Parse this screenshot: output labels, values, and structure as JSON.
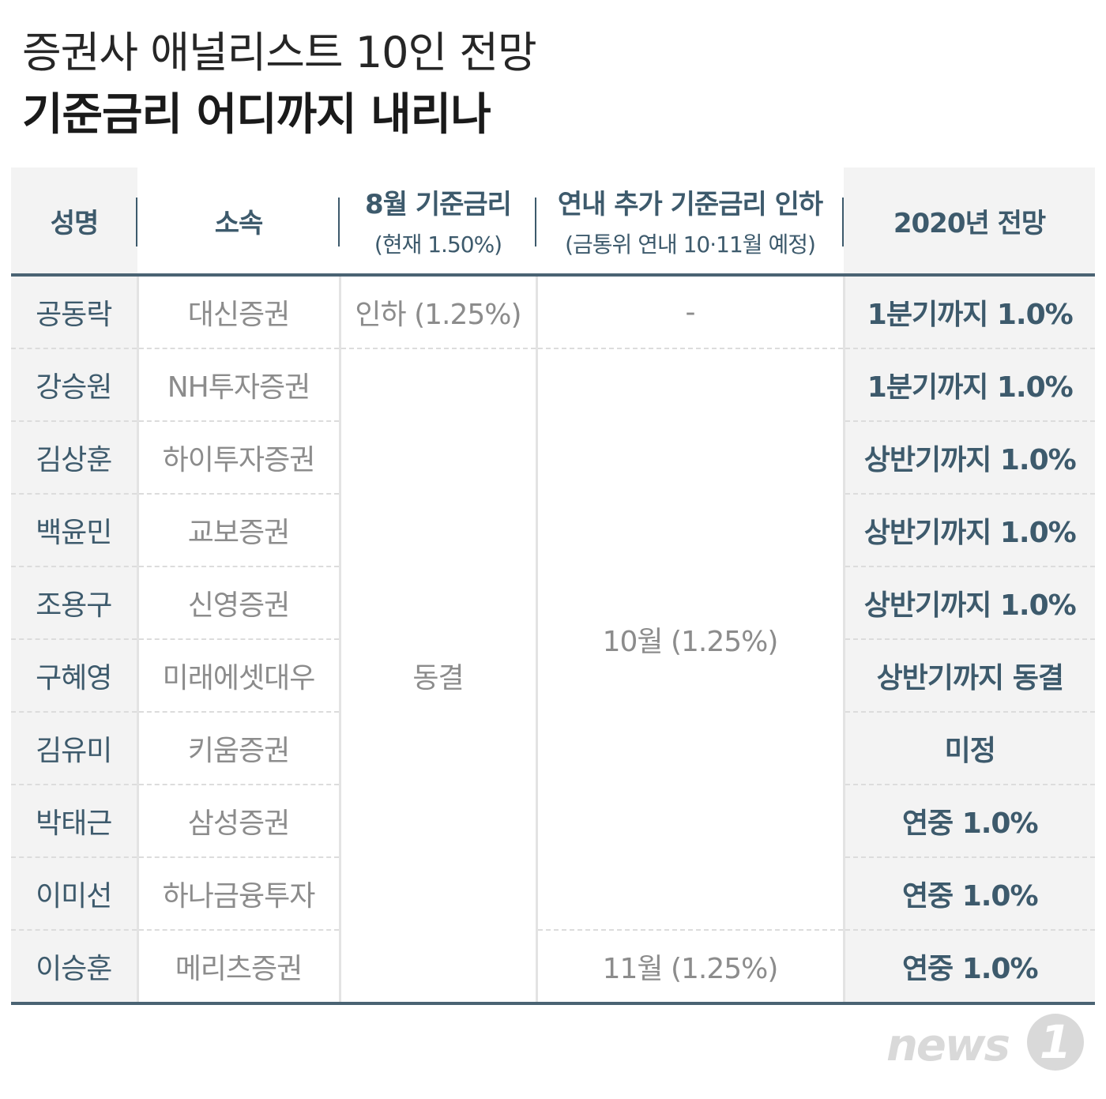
{
  "title": {
    "line1": "증권사 애널리스트 10인 전망",
    "line2": "기준금리 어디까지 내리나"
  },
  "table": {
    "headers": {
      "name": "성명",
      "affiliation": "소속",
      "august_main": "8월 기준금리",
      "august_sub": "(현재 1.50%)",
      "cut_main": "연내 추가 기준금리 인하",
      "cut_sub": "(금통위 연내 10·11월 예정)",
      "outlook": "2020년 전망"
    },
    "rows": [
      {
        "name": "공동락",
        "affiliation": "대신증권",
        "august": "인하 (1.25%)",
        "cut": "-",
        "outlook": "1분기까지 1.0%"
      },
      {
        "name": "강승원",
        "affiliation": "NH투자증권",
        "outlook": "1분기까지 1.0%"
      },
      {
        "name": "김상훈",
        "affiliation": "하이투자증권",
        "outlook": "상반기까지 1.0%"
      },
      {
        "name": "백윤민",
        "affiliation": "교보증권",
        "outlook": "상반기까지 1.0%"
      },
      {
        "name": "조용구",
        "affiliation": "신영증권",
        "outlook": "상반기까지 1.0%"
      },
      {
        "name": "구혜영",
        "affiliation": "미래에셋대우",
        "outlook": "상반기까지 동결"
      },
      {
        "name": "김유미",
        "affiliation": "키움증권",
        "outlook": "미정"
      },
      {
        "name": "박태근",
        "affiliation": "삼성증권",
        "outlook": "연중 1.0%"
      },
      {
        "name": "이미선",
        "affiliation": "하나금융투자",
        "outlook": "연중 1.0%"
      },
      {
        "name": "이승훈",
        "affiliation": "메리츠증권",
        "outlook": "연중 1.0%"
      }
    ],
    "august_merged": "동결",
    "cut_merged_oct": "10월 (1.25%)",
    "cut_nov": "11월 (1.25%)"
  },
  "logo": {
    "text": "news",
    "badge": "1"
  },
  "colors": {
    "header_text": "#3d5a6c",
    "rule": "#4a6373",
    "muted_text": "#8c8c8c",
    "shaded_column": "#f3f3f3"
  }
}
